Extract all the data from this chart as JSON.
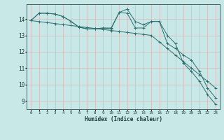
{
  "title": "",
  "xlabel": "Humidex (Indice chaleur)",
  "ylabel": "",
  "background_color": "#c8e8e8",
  "grid_color": "#b0d0d0",
  "line_color": "#2e6e6e",
  "x_values": [
    0,
    1,
    2,
    3,
    4,
    5,
    6,
    7,
    8,
    9,
    10,
    11,
    12,
    13,
    14,
    15,
    16,
    17,
    18,
    19,
    20,
    21,
    22,
    23
  ],
  "series1": [
    13.9,
    14.35,
    14.35,
    14.3,
    14.15,
    13.85,
    13.5,
    13.4,
    13.4,
    13.45,
    13.4,
    14.4,
    14.6,
    13.85,
    13.65,
    13.85,
    13.85,
    13.0,
    12.5,
    11.3,
    10.8,
    10.2,
    9.4,
    8.8
  ],
  "series2": [
    13.9,
    14.35,
    14.35,
    14.3,
    14.15,
    13.85,
    13.5,
    13.4,
    13.4,
    13.45,
    13.45,
    14.4,
    14.35,
    13.45,
    13.45,
    13.85,
    13.85,
    12.5,
    12.2,
    11.8,
    11.5,
    10.8,
    9.8,
    9.2
  ],
  "series3_linear": [
    13.9,
    13.84,
    13.78,
    13.72,
    13.66,
    13.6,
    13.54,
    13.48,
    13.42,
    13.36,
    13.3,
    13.24,
    13.18,
    13.12,
    13.06,
    13.0,
    12.6,
    12.2,
    11.8,
    11.4,
    11.0,
    10.6,
    10.2,
    9.8
  ],
  "ylim": [
    8.5,
    14.9
  ],
  "xlim": [
    -0.5,
    23.5
  ],
  "yticks": [
    9,
    10,
    11,
    12,
    13,
    14
  ],
  "xticks": [
    0,
    1,
    2,
    3,
    4,
    5,
    6,
    7,
    8,
    9,
    10,
    11,
    12,
    13,
    14,
    15,
    16,
    17,
    18,
    19,
    20,
    21,
    22,
    23
  ]
}
